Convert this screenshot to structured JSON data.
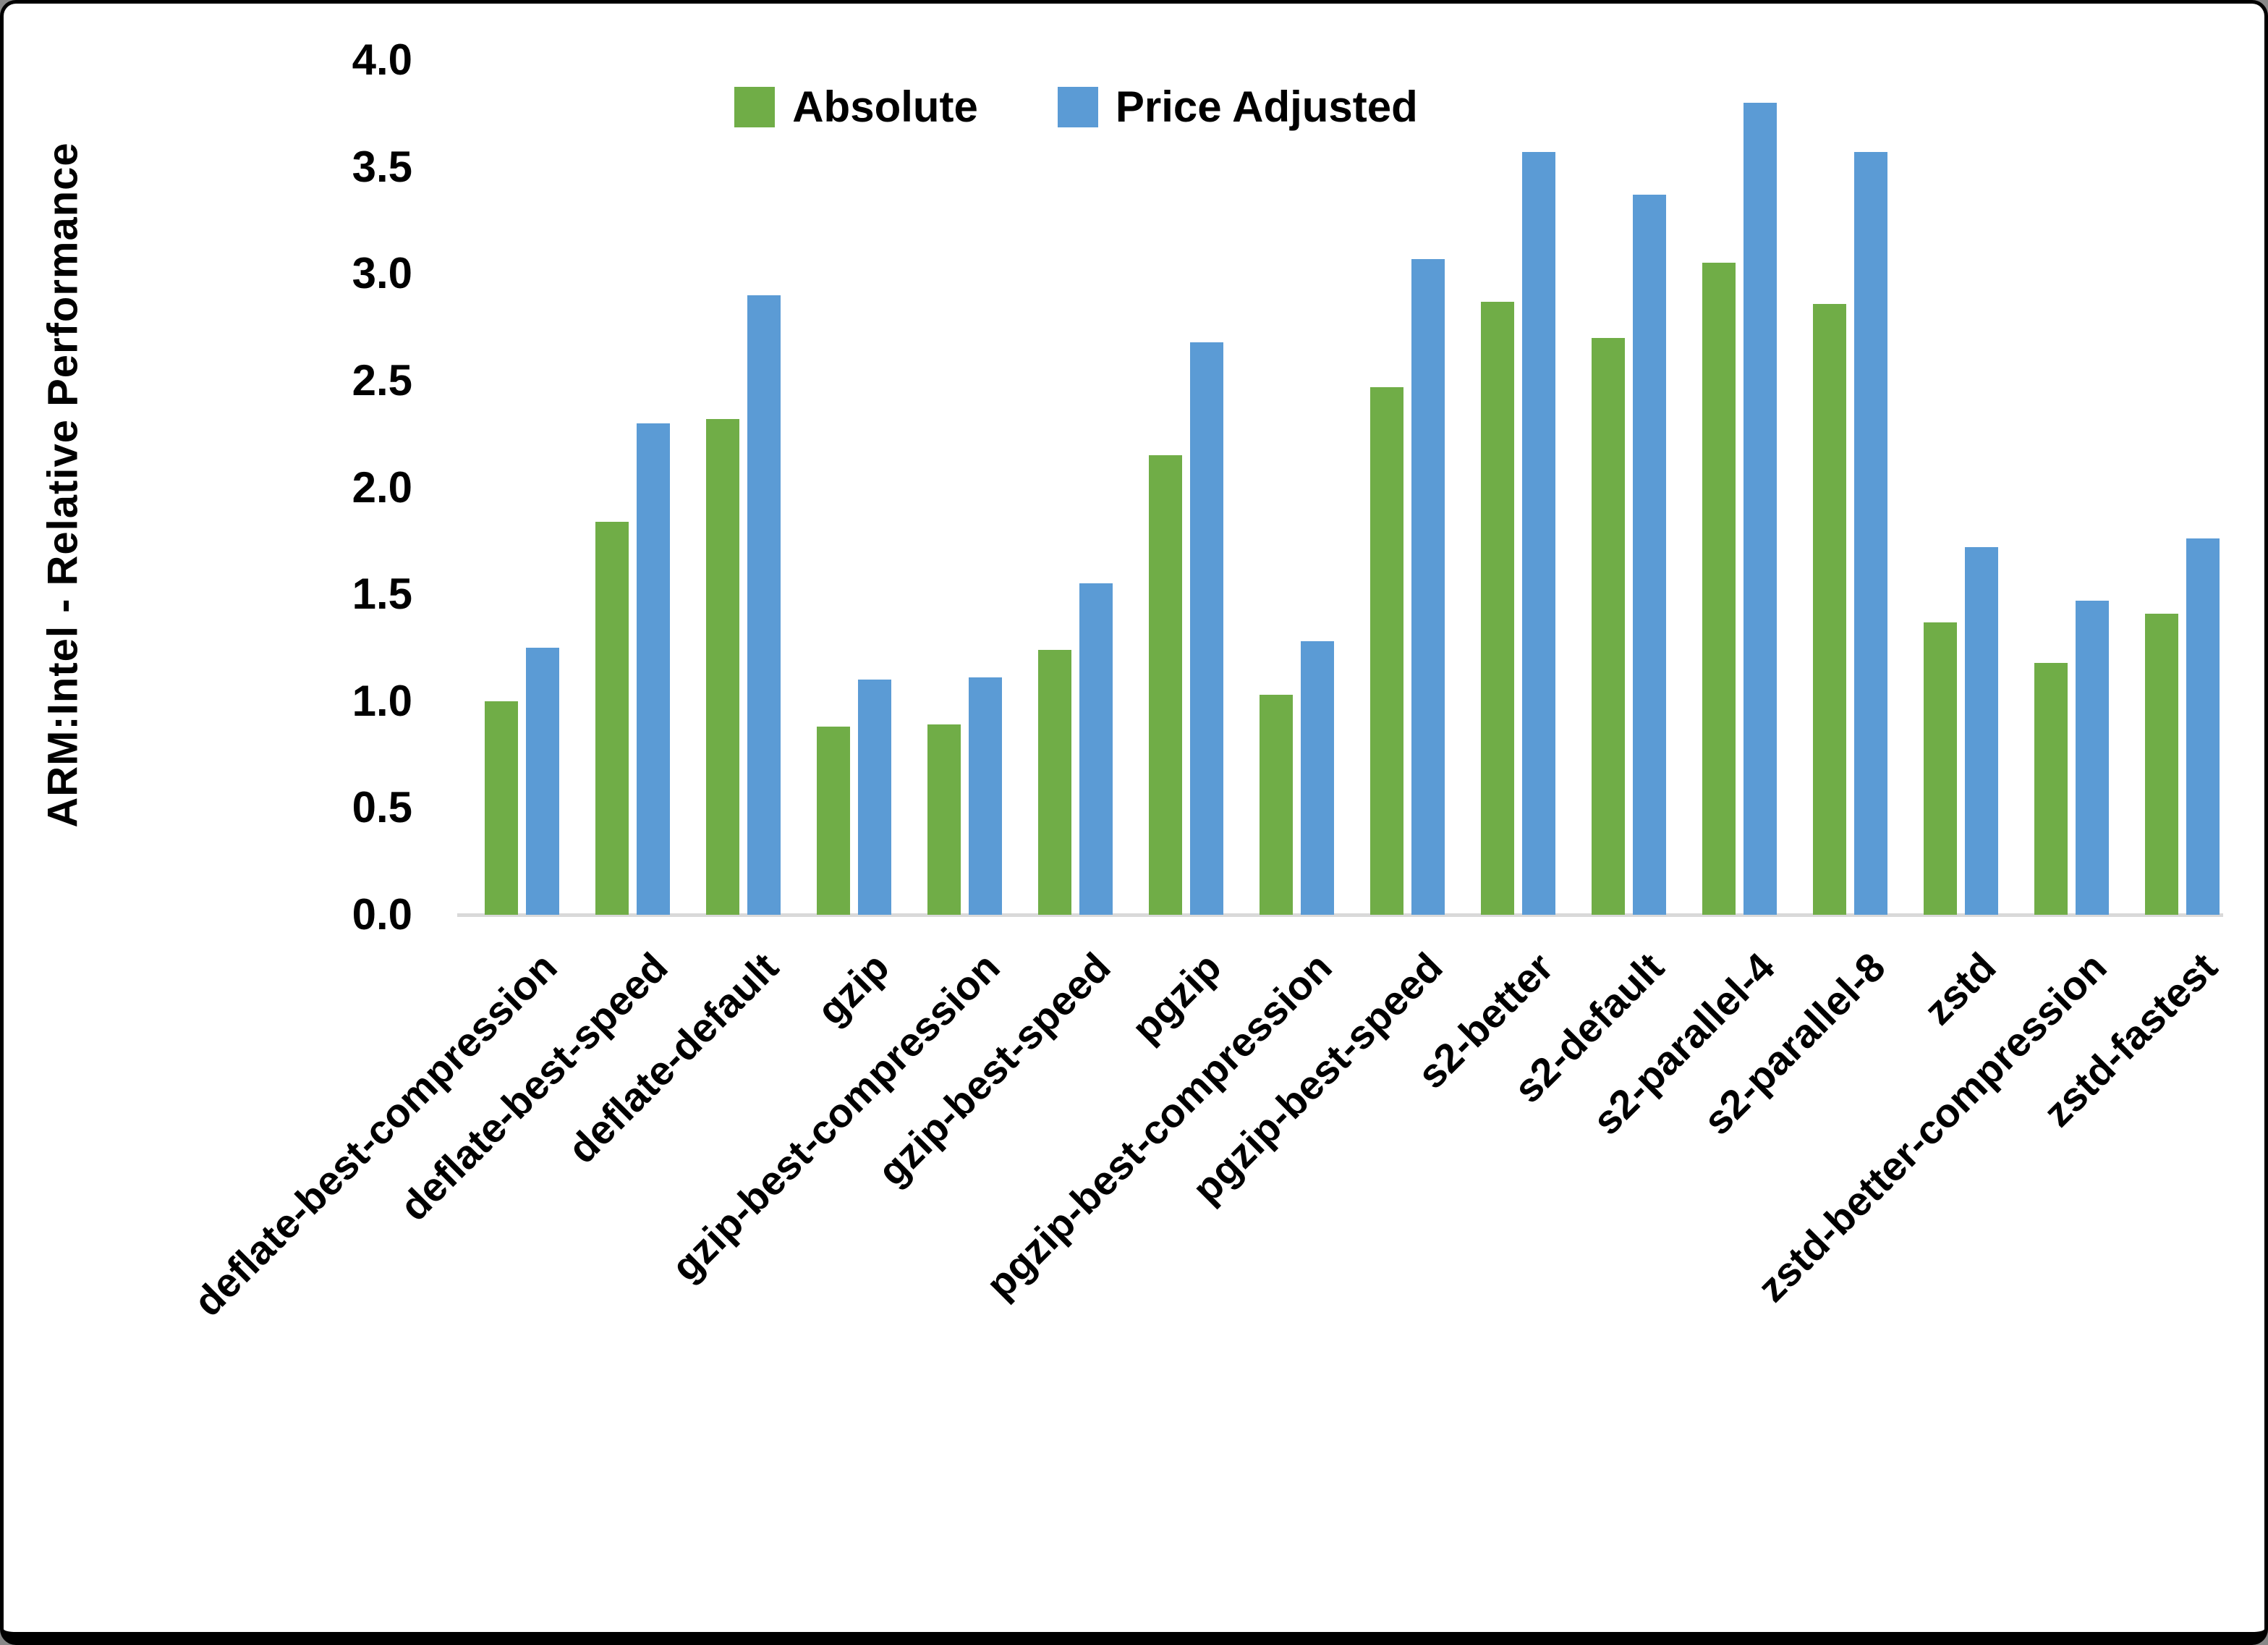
{
  "chart_data": {
    "type": "bar",
    "title": "",
    "xlabel": "",
    "ylabel": "ARM:Intel - Relative Performance",
    "ylim": [
      0.0,
      4.0
    ],
    "ytick_step": 0.5,
    "yticks": [
      "0.0",
      "0.5",
      "1.0",
      "1.5",
      "2.0",
      "2.5",
      "3.0",
      "3.5",
      "4.0"
    ],
    "grid": false,
    "legend_position": "top-center",
    "categories": [
      "deflate-best-compression",
      "deflate-best-speed",
      "deflate-default",
      "gzip",
      "gzip-best-compression",
      "gzip-best-speed",
      "pgzip",
      "pgzip-best-compression",
      "pgzip-best-speed",
      "s2-better",
      "s2-default",
      "s2-parallel-4",
      "s2-parallel-8",
      "zstd",
      "zstd-better-compression",
      "zstd-fastest"
    ],
    "series": [
      {
        "name": "Absolute",
        "color": "#70AD47",
        "values": [
          1.0,
          1.84,
          2.32,
          0.88,
          0.89,
          1.24,
          2.15,
          1.03,
          2.47,
          2.87,
          2.7,
          3.05,
          2.86,
          1.37,
          1.18,
          1.41
        ]
      },
      {
        "name": "Price Adjusted",
        "color": "#5B9BD5",
        "values": [
          1.25,
          2.3,
          2.9,
          1.1,
          1.11,
          1.55,
          2.68,
          1.28,
          3.07,
          3.57,
          3.37,
          3.8,
          3.57,
          1.72,
          1.47,
          1.76
        ]
      }
    ],
    "colors": {
      "axis_line": "#D9D9D9",
      "text": "#000000",
      "background": "#FFFFFF"
    }
  }
}
